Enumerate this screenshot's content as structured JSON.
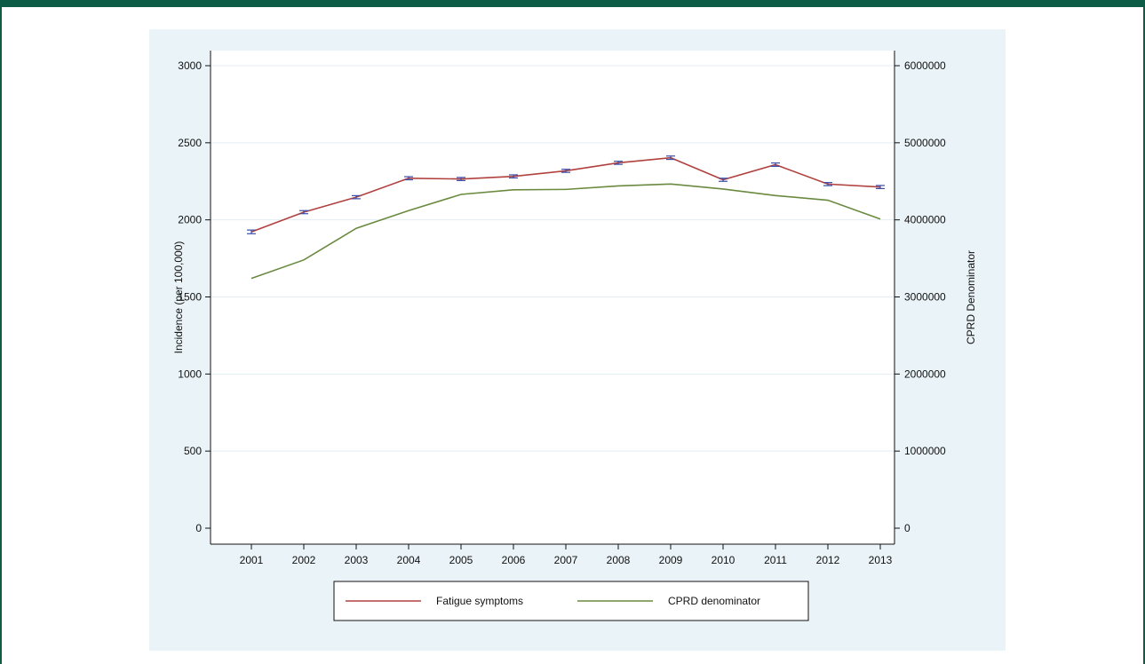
{
  "chart_data": {
    "type": "line",
    "x": [
      2001,
      2002,
      2003,
      2004,
      2005,
      2006,
      2007,
      2008,
      2009,
      2010,
      2011,
      2012,
      2013
    ],
    "x_ticks": [
      "2001",
      "2002",
      "2003",
      "2004",
      "2005",
      "2006",
      "2007",
      "2008",
      "2009",
      "2010",
      "2011",
      "2012",
      "2013"
    ],
    "ylabel": "Incidence (per 100,000)",
    "ylabel_right": "CPRD Denominator",
    "ylim": [
      0,
      3000
    ],
    "ylim_right": [
      0,
      6000000
    ],
    "y_ticks_left": [
      "0",
      "500",
      "1000",
      "1500",
      "2000",
      "2500",
      "3000"
    ],
    "y_ticks_right": [
      "0",
      "1000000",
      "2000000",
      "3000000",
      "4000000",
      "5000000",
      "6000000"
    ],
    "grid": true,
    "legend_position": "bottom",
    "series": [
      {
        "name": "Fatigue symptoms",
        "axis": "left",
        "color": "#b0413e",
        "error_bar_color": "#3a4ea8",
        "values": [
          1922,
          2050,
          2147,
          2270,
          2265,
          2282,
          2318,
          2370,
          2403,
          2260,
          2358,
          2232,
          2213
        ],
        "ci_low": [
          1910,
          2040,
          2137,
          2260,
          2255,
          2272,
          2308,
          2360,
          2392,
          2250,
          2347,
          2222,
          2203
        ],
        "ci_high": [
          1934,
          2060,
          2157,
          2280,
          2275,
          2292,
          2328,
          2380,
          2414,
          2270,
          2369,
          2242,
          2223
        ]
      },
      {
        "name": "CPRD denominator",
        "axis": "right",
        "color": "#6a8a3f",
        "values": [
          3240000,
          3480000,
          3890000,
          4120000,
          4330000,
          4390000,
          4395000,
          4440000,
          4465000,
          4400000,
          4315000,
          4255000,
          4010000
        ]
      }
    ]
  }
}
